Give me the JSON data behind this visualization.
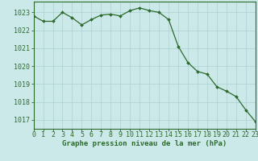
{
  "x": [
    0,
    1,
    2,
    3,
    4,
    5,
    6,
    7,
    8,
    9,
    10,
    11,
    12,
    13,
    14,
    15,
    16,
    17,
    18,
    19,
    20,
    21,
    22,
    23
  ],
  "y": [
    1022.8,
    1022.5,
    1022.5,
    1023.0,
    1022.7,
    1022.3,
    1022.6,
    1022.85,
    1022.9,
    1022.8,
    1023.1,
    1023.25,
    1023.1,
    1023.0,
    1022.6,
    1021.1,
    1020.2,
    1019.7,
    1019.55,
    1018.85,
    1018.6,
    1018.3,
    1017.55,
    1016.9
  ],
  "line_color": "#2d6a2d",
  "marker": "D",
  "marker_size": 2.0,
  "bg_color": "#cce9e9",
  "grid_major_color": "#b0d4d4",
  "grid_minor_color": "#c0dcdc",
  "axis_color": "#2d6a2d",
  "xlabel": "Graphe pression niveau de la mer (hPa)",
  "xlabel_fontsize": 6.5,
  "ylabel_ticks": [
    1017,
    1018,
    1019,
    1020,
    1021,
    1022,
    1023
  ],
  "xlim": [
    0,
    23
  ],
  "ylim": [
    1016.5,
    1023.6
  ],
  "tick_fontsize": 6.0,
  "line_width": 0.9
}
